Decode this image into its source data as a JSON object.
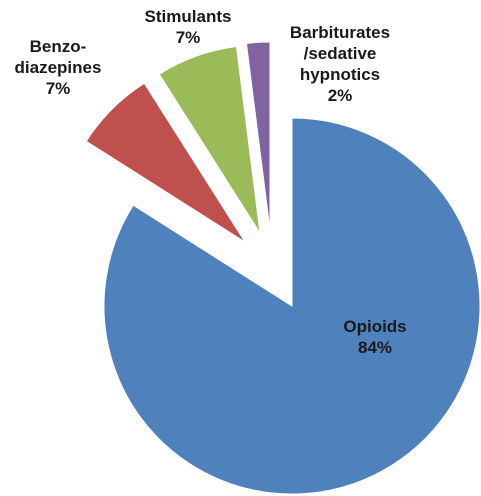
{
  "chart_data": {
    "type": "pie",
    "exploded": true,
    "start_angle_deg": 0,
    "direction": "clockwise",
    "slices": [
      {
        "label_lines": [
          "Opioids",
          "84%"
        ],
        "value": 84,
        "color": "#4f81bd"
      },
      {
        "label_lines": [
          "Benzo-",
          "diazepines",
          "7%"
        ],
        "value": 7,
        "color": "#c0504d"
      },
      {
        "label_lines": [
          "Stimulants",
          "7%"
        ],
        "value": 7,
        "color": "#9bbb59"
      },
      {
        "label_lines": [
          "Barbiturates",
          "/sedative",
          "hypnotics",
          "2%"
        ],
        "value": 2,
        "color": "#8064a2"
      }
    ]
  }
}
